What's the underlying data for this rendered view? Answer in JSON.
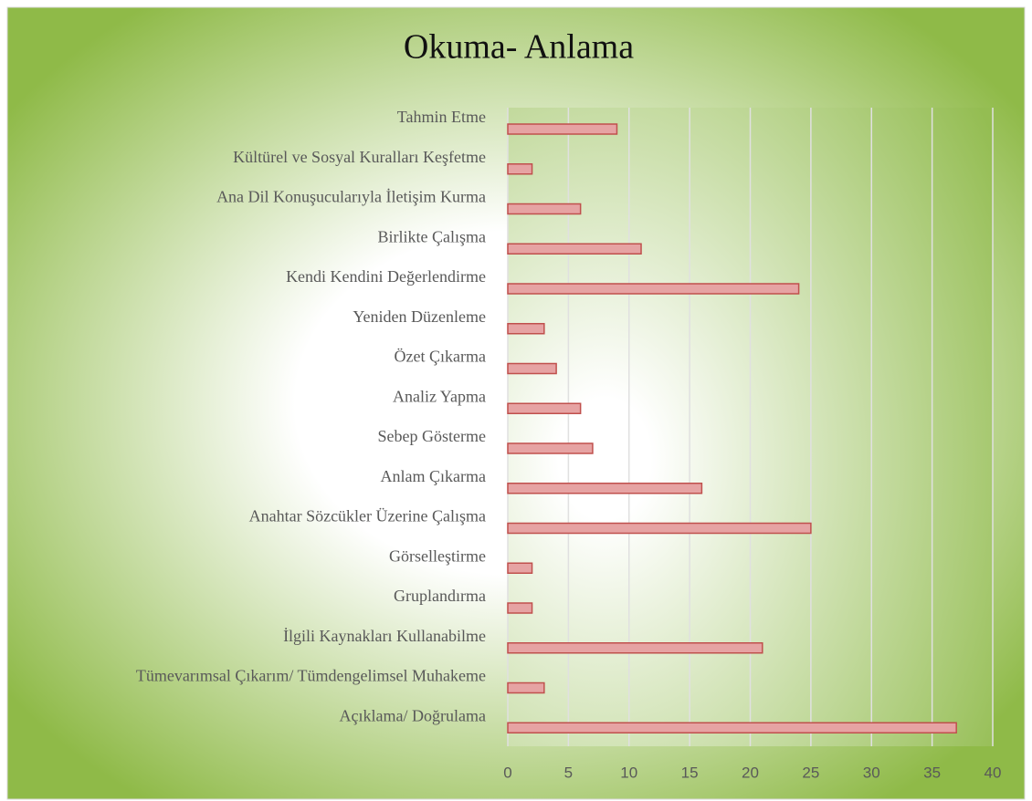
{
  "chart_data": {
    "type": "bar",
    "orientation": "horizontal",
    "title": "Okuma- Anlama",
    "categories": [
      "Tahmin Etme",
      "Kültürel ve Sosyal Kuralları Keşfetme",
      "Ana Dil Konuşucularıyla İletişim Kurma",
      "Birlikte Çalışma",
      "Kendi Kendini Değerlendirme",
      "Yeniden Düzenleme",
      "Özet Çıkarma",
      "Analiz Yapma",
      "Sebep Gösterme",
      "Anlam Çıkarma",
      "Anahtar Sözcükler Üzerine Çalışma",
      "Görselleştirme",
      "Gruplandırma",
      "İlgili Kaynakları Kullanabilme",
      "Tümevarımsal Çıkarım/ Tümdengelimsel Muhakeme",
      "Açıklama/ Doğrulama"
    ],
    "values": [
      9,
      2,
      6,
      11,
      24,
      3,
      4,
      6,
      7,
      16,
      25,
      2,
      2,
      21,
      3,
      37
    ],
    "color": "#e6a3a3",
    "edge_color": "#c0504d",
    "xlim": [
      0,
      40
    ],
    "xticks": [
      0,
      5,
      10,
      15,
      20,
      25,
      30,
      35,
      40
    ],
    "grid": true
  }
}
